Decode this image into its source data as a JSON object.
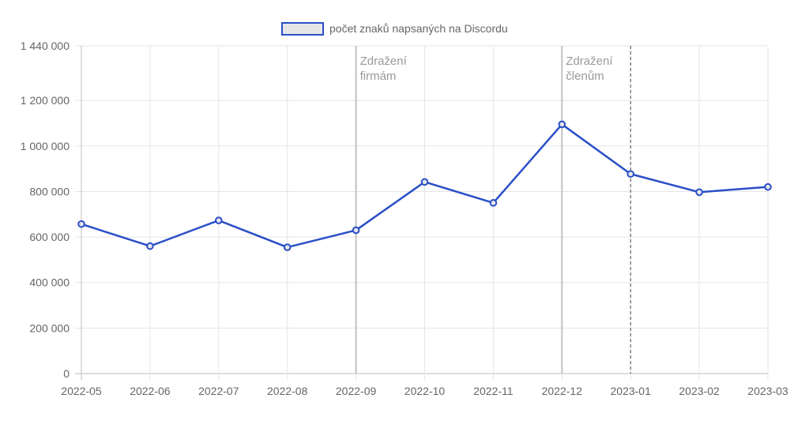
{
  "chart_data": {
    "type": "line",
    "categories": [
      "2022-05",
      "2022-06",
      "2022-07",
      "2022-08",
      "2022-09",
      "2022-10",
      "2022-11",
      "2022-12",
      "2023-01",
      "2023-02",
      "2023-03"
    ],
    "series": [
      {
        "name": "počet znaků napsaných na Discordu",
        "values": [
          657000,
          560000,
          673000,
          555000,
          630000,
          842000,
          750000,
          1095000,
          877000,
          797000,
          820000
        ],
        "color": "#2a4fc8",
        "marker_fill": "#e6e6e6"
      }
    ],
    "ylim": [
      0,
      1440000
    ],
    "yticks": [
      0,
      200000,
      400000,
      600000,
      800000,
      1000000,
      1200000,
      1440000
    ],
    "ytick_labels": [
      "0",
      "200 000",
      "400 000",
      "600 000",
      "800 000",
      "1 000 000",
      "1 200 000",
      "1 440 000"
    ],
    "grid": true,
    "legend_position": "top-center",
    "annotations": [
      {
        "x": "2022-09",
        "style": "solid",
        "lines": [
          "Zdražení",
          "firmám"
        ]
      },
      {
        "x": "2022-12",
        "style": "solid",
        "lines": [
          "Zdražení",
          "členům"
        ]
      },
      {
        "x": "2023-01",
        "style": "dashed",
        "lines": []
      }
    ]
  }
}
